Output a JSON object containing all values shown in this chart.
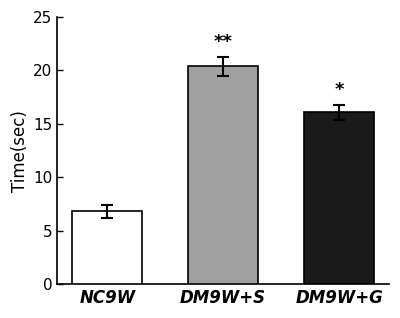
{
  "categories": [
    "NC9W",
    "DM9W+S",
    "DM9W+G"
  ],
  "values": [
    6.8,
    20.4,
    16.1
  ],
  "errors": [
    0.6,
    0.9,
    0.7
  ],
  "bar_colors": [
    "#ffffff",
    "#a0a0a0",
    "#1a1a1a"
  ],
  "bar_edgecolors": [
    "#000000",
    "#000000",
    "#000000"
  ],
  "significance": [
    "",
    "**",
    "*"
  ],
  "ylabel": "Time(sec)",
  "ylim": [
    0,
    25
  ],
  "yticks": [
    0,
    5,
    10,
    15,
    20,
    25
  ],
  "bar_width": 0.6,
  "label_fontsize": 12,
  "tick_fontsize": 11,
  "sig_fontsize": 13,
  "xtick_fontsize": 12
}
